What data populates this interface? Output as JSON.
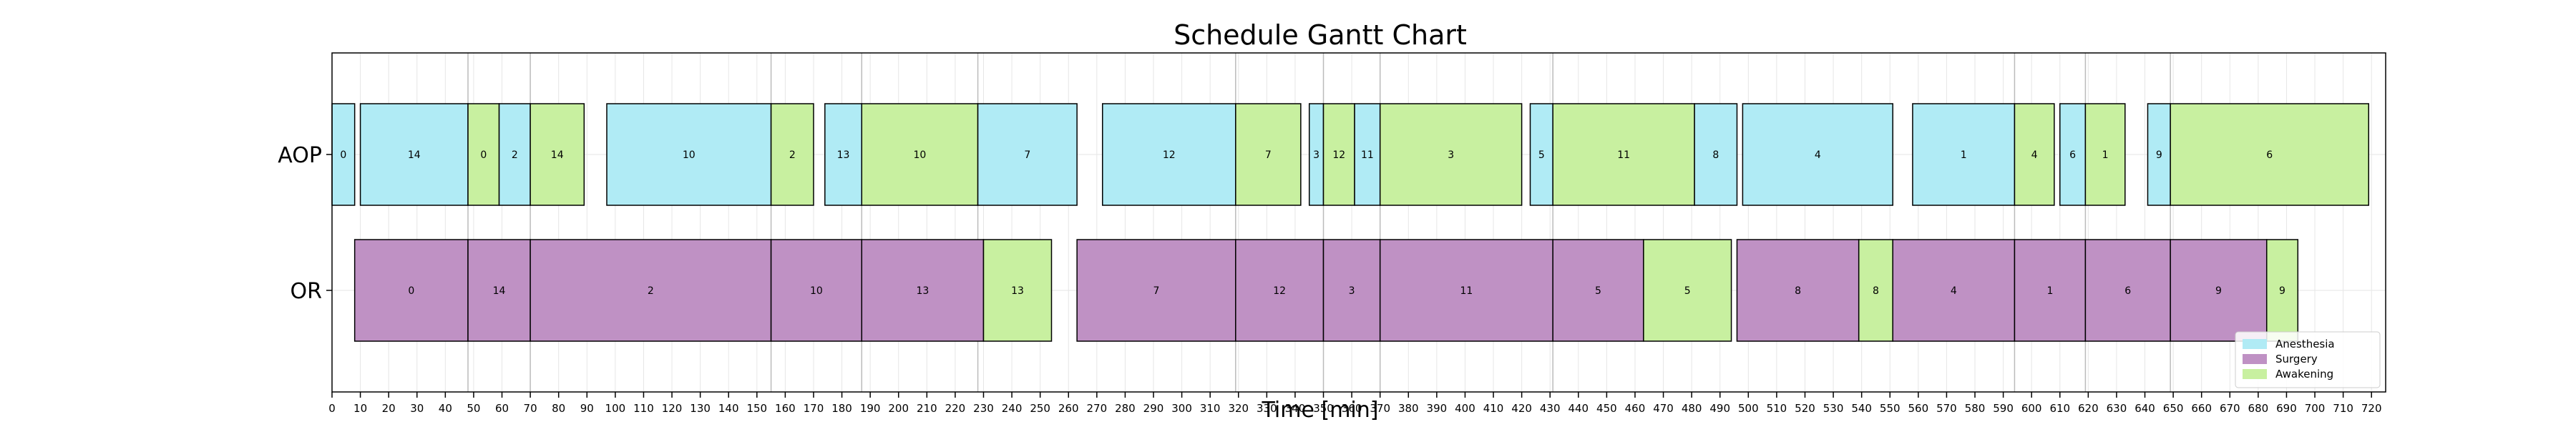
{
  "chart_data": {
    "type": "gantt",
    "title": "Schedule Gantt Chart",
    "xlabel": "Time [min]",
    "ylabel": "",
    "xlim": [
      0,
      725
    ],
    "xticks": [
      0,
      10,
      20,
      30,
      40,
      50,
      60,
      70,
      80,
      90,
      100,
      110,
      120,
      130,
      140,
      150,
      160,
      170,
      180,
      190,
      200,
      210,
      220,
      230,
      240,
      250,
      260,
      270,
      280,
      290,
      300,
      310,
      320,
      330,
      340,
      350,
      360,
      370,
      380,
      390,
      400,
      410,
      420,
      430,
      440,
      450,
      460,
      470,
      480,
      490,
      500,
      510,
      520,
      530,
      540,
      550,
      560,
      570,
      580,
      590,
      600,
      610,
      620,
      630,
      640,
      650,
      660,
      670,
      680,
      690,
      700,
      710,
      720
    ],
    "grid": true,
    "rows": [
      "AOP",
      "OR"
    ],
    "legend": {
      "placement": "bottom-right",
      "entries": [
        {
          "key": "anesthesia",
          "label": "Anesthesia"
        },
        {
          "key": "surgery",
          "label": "Surgery"
        },
        {
          "key": "awakening",
          "label": "Awakening"
        }
      ]
    },
    "colors": {
      "anesthesia": "#b0ebf5",
      "surgery": "#bf91c4",
      "awakening": "#c8f0a0",
      "edge": "#000000",
      "grid": "#e6e6e6",
      "marker": "#bbbbbb"
    },
    "tasks": [
      {
        "row": "AOP",
        "phase": "anesthesia",
        "start": 0,
        "end": 8,
        "label": "0"
      },
      {
        "row": "AOP",
        "phase": "anesthesia",
        "start": 10,
        "end": 48,
        "label": "14"
      },
      {
        "row": "AOP",
        "phase": "awakening",
        "start": 48,
        "end": 59,
        "label": "0"
      },
      {
        "row": "AOP",
        "phase": "anesthesia",
        "start": 59,
        "end": 70,
        "label": "2"
      },
      {
        "row": "AOP",
        "phase": "awakening",
        "start": 70,
        "end": 89,
        "label": "14"
      },
      {
        "row": "AOP",
        "phase": "anesthesia",
        "start": 97,
        "end": 155,
        "label": "10"
      },
      {
        "row": "AOP",
        "phase": "awakening",
        "start": 155,
        "end": 170,
        "label": "2"
      },
      {
        "row": "AOP",
        "phase": "anesthesia",
        "start": 174,
        "end": 187,
        "label": "13"
      },
      {
        "row": "AOP",
        "phase": "awakening",
        "start": 187,
        "end": 228,
        "label": "10"
      },
      {
        "row": "AOP",
        "phase": "anesthesia",
        "start": 228,
        "end": 263,
        "label": "7"
      },
      {
        "row": "AOP",
        "phase": "anesthesia",
        "start": 272,
        "end": 319,
        "label": "12"
      },
      {
        "row": "AOP",
        "phase": "awakening",
        "start": 319,
        "end": 342,
        "label": "7"
      },
      {
        "row": "AOP",
        "phase": "anesthesia",
        "start": 345,
        "end": 350,
        "label": "3"
      },
      {
        "row": "AOP",
        "phase": "awakening",
        "start": 350,
        "end": 361,
        "label": "12"
      },
      {
        "row": "AOP",
        "phase": "anesthesia",
        "start": 361,
        "end": 370,
        "label": "11"
      },
      {
        "row": "AOP",
        "phase": "awakening",
        "start": 370,
        "end": 420,
        "label": "3"
      },
      {
        "row": "AOP",
        "phase": "anesthesia",
        "start": 423,
        "end": 431,
        "label": "5"
      },
      {
        "row": "AOP",
        "phase": "awakening",
        "start": 431,
        "end": 481,
        "label": "11"
      },
      {
        "row": "AOP",
        "phase": "anesthesia",
        "start": 481,
        "end": 496,
        "label": "8"
      },
      {
        "row": "AOP",
        "phase": "anesthesia",
        "start": 498,
        "end": 551,
        "label": "4"
      },
      {
        "row": "AOP",
        "phase": "anesthesia",
        "start": 558,
        "end": 594,
        "label": "1"
      },
      {
        "row": "AOP",
        "phase": "awakening",
        "start": 594,
        "end": 608,
        "label": "4"
      },
      {
        "row": "AOP",
        "phase": "anesthesia",
        "start": 610,
        "end": 619,
        "label": "6"
      },
      {
        "row": "AOP",
        "phase": "awakening",
        "start": 619,
        "end": 633,
        "label": "1"
      },
      {
        "row": "AOP",
        "phase": "anesthesia",
        "start": 641,
        "end": 649,
        "label": "9"
      },
      {
        "row": "AOP",
        "phase": "awakening",
        "start": 649,
        "end": 719,
        "label": "6"
      },
      {
        "row": "OR",
        "phase": "surgery",
        "start": 8,
        "end": 48,
        "label": "0"
      },
      {
        "row": "OR",
        "phase": "surgery",
        "start": 48,
        "end": 70,
        "label": "14"
      },
      {
        "row": "OR",
        "phase": "surgery",
        "start": 70,
        "end": 155,
        "label": "2"
      },
      {
        "row": "OR",
        "phase": "surgery",
        "start": 155,
        "end": 187,
        "label": "10"
      },
      {
        "row": "OR",
        "phase": "surgery",
        "start": 187,
        "end": 230,
        "label": "13"
      },
      {
        "row": "OR",
        "phase": "awakening",
        "start": 230,
        "end": 254,
        "label": "13"
      },
      {
        "row": "OR",
        "phase": "surgery",
        "start": 263,
        "end": 319,
        "label": "7"
      },
      {
        "row": "OR",
        "phase": "surgery",
        "start": 319,
        "end": 350,
        "label": "12"
      },
      {
        "row": "OR",
        "phase": "surgery",
        "start": 350,
        "end": 370,
        "label": "3"
      },
      {
        "row": "OR",
        "phase": "surgery",
        "start": 370,
        "end": 431,
        "label": "11"
      },
      {
        "row": "OR",
        "phase": "surgery",
        "start": 431,
        "end": 463,
        "label": "5"
      },
      {
        "row": "OR",
        "phase": "awakening",
        "start": 463,
        "end": 494,
        "label": "5"
      },
      {
        "row": "OR",
        "phase": "surgery",
        "start": 496,
        "end": 539,
        "label": "8"
      },
      {
        "row": "OR",
        "phase": "awakening",
        "start": 539,
        "end": 551,
        "label": "8"
      },
      {
        "row": "OR",
        "phase": "surgery",
        "start": 551,
        "end": 594,
        "label": "4"
      },
      {
        "row": "OR",
        "phase": "surgery",
        "start": 594,
        "end": 619,
        "label": "1"
      },
      {
        "row": "OR",
        "phase": "surgery",
        "start": 619,
        "end": 649,
        "label": "6"
      },
      {
        "row": "OR",
        "phase": "surgery",
        "start": 649,
        "end": 683,
        "label": "9"
      },
      {
        "row": "OR",
        "phase": "awakening",
        "start": 683,
        "end": 694,
        "label": "9"
      }
    ],
    "markers": [
      48,
      70,
      155,
      187,
      228,
      319,
      350,
      370,
      431,
      594,
      619,
      649
    ]
  }
}
